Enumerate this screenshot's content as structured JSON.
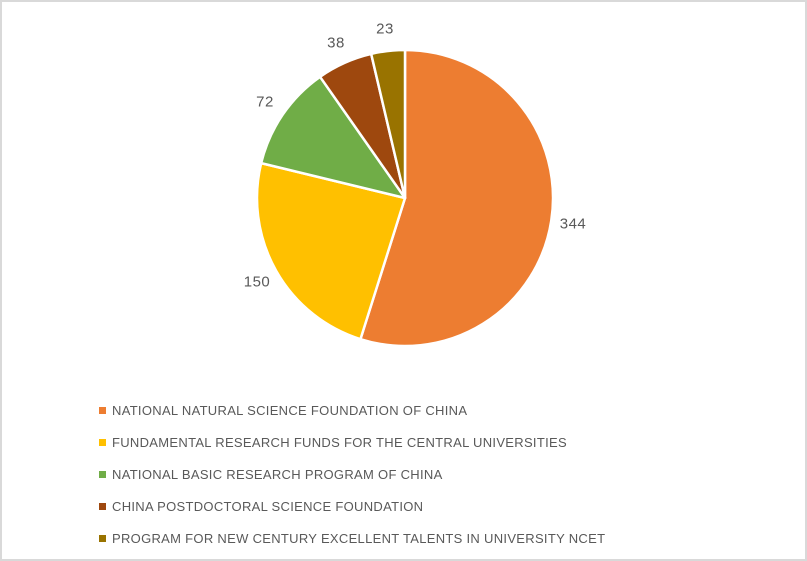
{
  "chart_data": {
    "type": "pie",
    "title": "",
    "categories": [
      "NATIONAL NATURAL SCIENCE FOUNDATION OF CHINA",
      "FUNDAMENTAL RESEARCH FUNDS FOR THE CENTRAL UNIVERSITIES",
      "NATIONAL BASIC RESEARCH PROGRAM OF CHINA",
      "CHINA POSTDOCTORAL SCIENCE FOUNDATION",
      "PROGRAM FOR NEW CENTURY EXCELLENT TALENTS IN UNIVERSITY NCET"
    ],
    "values": [
      344,
      150,
      72,
      38,
      23
    ],
    "data_labels": [
      "344",
      "150",
      "72",
      "38",
      "23"
    ],
    "colors": [
      "#ED7D31",
      "#FFC000",
      "#70AD47",
      "#9E480E",
      "#997300"
    ],
    "total": 627,
    "start_angle_deg": 0,
    "direction": "clockwise",
    "legend_position": "bottom-left",
    "slice_separator_color": "#FFFFFF"
  },
  "styles": {
    "background": "#FFFFFF",
    "border_color": "#D9D9D9",
    "data_label_color": "#595959",
    "legend_text_color": "#595959"
  }
}
